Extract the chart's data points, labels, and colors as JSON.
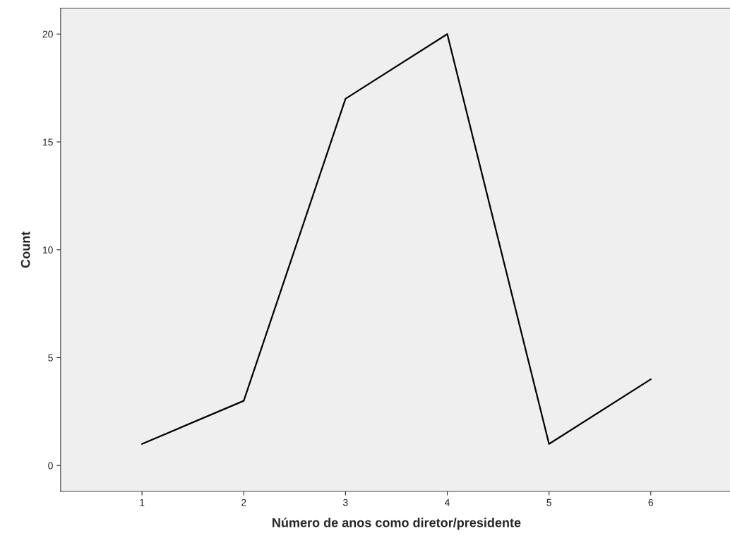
{
  "chart_data": {
    "type": "line",
    "xlabel": "Número de anos como diretor/presidente",
    "ylabel": "Count",
    "categories": [
      "1",
      "2",
      "3",
      "4",
      "5",
      "6"
    ],
    "series": [
      {
        "color": "#000000",
        "values": [
          1,
          3,
          17,
          20,
          1,
          4
        ]
      }
    ],
    "ylim": [
      -1.2,
      21.2
    ],
    "yticks": [
      0,
      5,
      10,
      15,
      20
    ],
    "grid": false,
    "legend": false,
    "marker": "none",
    "line_style": "solid"
  }
}
